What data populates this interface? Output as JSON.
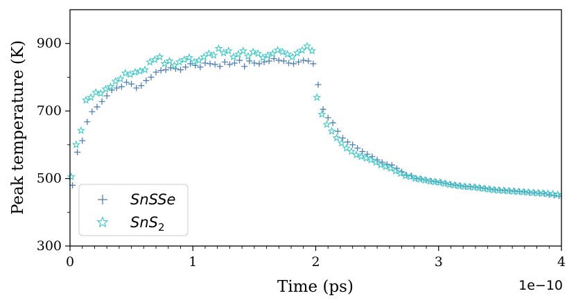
{
  "chart_data": {
    "type": "scatter",
    "title": "",
    "xlabel": "Time (ps)",
    "ylabel": "Peak temperature (K)",
    "x_offset_label": "1e−10",
    "xlim": [
      0,
      4
    ],
    "ylim": [
      300,
      1000
    ],
    "xticks": [
      0,
      1,
      2,
      3,
      4
    ],
    "xtick_labels": [
      "0",
      "1",
      "2",
      "3",
      "4"
    ],
    "yticks": [
      300,
      500,
      700,
      900
    ],
    "ytick_labels": [
      "300",
      "500",
      "700",
      "900"
    ],
    "grid": false,
    "legend_position": "lower-left",
    "series": [
      {
        "name": "SnSSe",
        "marker": "plus",
        "color": "#4f7fb5",
        "x": [
          0.02,
          0.06,
          0.1,
          0.14,
          0.18,
          0.22,
          0.26,
          0.3,
          0.34,
          0.38,
          0.42,
          0.46,
          0.5,
          0.54,
          0.58,
          0.62,
          0.66,
          0.7,
          0.74,
          0.78,
          0.82,
          0.86,
          0.9,
          0.94,
          0.98,
          1.02,
          1.06,
          1.1,
          1.14,
          1.18,
          1.22,
          1.26,
          1.3,
          1.34,
          1.38,
          1.42,
          1.46,
          1.5,
          1.54,
          1.58,
          1.62,
          1.66,
          1.7,
          1.74,
          1.78,
          1.82,
          1.86,
          1.9,
          1.94,
          1.98,
          2.02,
          2.06,
          2.1,
          2.14,
          2.18,
          2.22,
          2.26,
          2.3,
          2.34,
          2.38,
          2.42,
          2.46,
          2.5,
          2.54,
          2.58,
          2.62,
          2.66,
          2.7,
          2.74,
          2.78,
          2.82,
          2.86,
          2.9,
          2.94,
          2.98,
          3.02,
          3.06,
          3.1,
          3.14,
          3.18,
          3.22,
          3.26,
          3.3,
          3.34,
          3.38,
          3.42,
          3.46,
          3.5,
          3.54,
          3.58,
          3.62,
          3.66,
          3.7,
          3.74,
          3.78,
          3.82,
          3.86,
          3.9,
          3.94,
          3.98
        ],
        "values": [
          480,
          578,
          612,
          668,
          698,
          712,
          728,
          745,
          762,
          768,
          772,
          785,
          780,
          768,
          775,
          790,
          800,
          815,
          820,
          822,
          828,
          825,
          822,
          830,
          840,
          835,
          830,
          842,
          840,
          838,
          832,
          845,
          838,
          842,
          850,
          832,
          848,
          842,
          840,
          845,
          848,
          855,
          850,
          848,
          842,
          840,
          845,
          850,
          848,
          840,
          778,
          705,
          680,
          665,
          640,
          620,
          608,
          600,
          590,
          580,
          572,
          565,
          555,
          548,
          542,
          540,
          530,
          520,
          510,
          508,
          500,
          498,
          495,
          492,
          490,
          488,
          485,
          482,
          480,
          478,
          476,
          475,
          474,
          472,
          470,
          468,
          466,
          465,
          464,
          463,
          462,
          461,
          460,
          458,
          457,
          456,
          455,
          452,
          450,
          448
        ]
      },
      {
        "name": "SnS2",
        "legend_label": "SnS",
        "legend_subscript": "2",
        "marker": "star",
        "color": "#3ec8c8",
        "x": [
          0.01,
          0.05,
          0.09,
          0.13,
          0.17,
          0.21,
          0.25,
          0.29,
          0.33,
          0.37,
          0.41,
          0.45,
          0.49,
          0.53,
          0.57,
          0.61,
          0.65,
          0.69,
          0.73,
          0.77,
          0.81,
          0.85,
          0.89,
          0.93,
          0.97,
          1.01,
          1.05,
          1.09,
          1.13,
          1.17,
          1.21,
          1.25,
          1.29,
          1.33,
          1.37,
          1.41,
          1.45,
          1.49,
          1.53,
          1.57,
          1.61,
          1.65,
          1.69,
          1.73,
          1.77,
          1.81,
          1.85,
          1.89,
          1.93,
          1.97,
          2.01,
          2.05,
          2.09,
          2.13,
          2.17,
          2.21,
          2.25,
          2.29,
          2.33,
          2.37,
          2.41,
          2.45,
          2.49,
          2.53,
          2.57,
          2.61,
          2.65,
          2.69,
          2.73,
          2.77,
          2.81,
          2.85,
          2.89,
          2.93,
          2.97,
          3.01,
          3.05,
          3.09,
          3.13,
          3.17,
          3.21,
          3.25,
          3.29,
          3.33,
          3.37,
          3.41,
          3.45,
          3.49,
          3.53,
          3.57,
          3.61,
          3.65,
          3.69,
          3.73,
          3.77,
          3.81,
          3.85,
          3.89,
          3.93,
          3.97
        ],
        "values": [
          505,
          600,
          642,
          732,
          740,
          755,
          752,
          765,
          772,
          788,
          795,
          812,
          808,
          815,
          818,
          822,
          845,
          852,
          860,
          840,
          848,
          835,
          845,
          852,
          858,
          845,
          850,
          860,
          870,
          865,
          885,
          872,
          878,
          860,
          868,
          878,
          862,
          875,
          870,
          858,
          865,
          870,
          880,
          875,
          868,
          860,
          872,
          880,
          892,
          878,
          740,
          690,
          660,
          640,
          620,
          605,
          590,
          580,
          570,
          565,
          560,
          555,
          548,
          540,
          535,
          530,
          522,
          515,
          508,
          505,
          500,
          498,
          495,
          492,
          490,
          488,
          485,
          482,
          480,
          478,
          476,
          475,
          474,
          472,
          470,
          468,
          466,
          465,
          464,
          463,
          462,
          461,
          460,
          459,
          458,
          457,
          456,
          455,
          454,
          452
        ]
      }
    ]
  }
}
